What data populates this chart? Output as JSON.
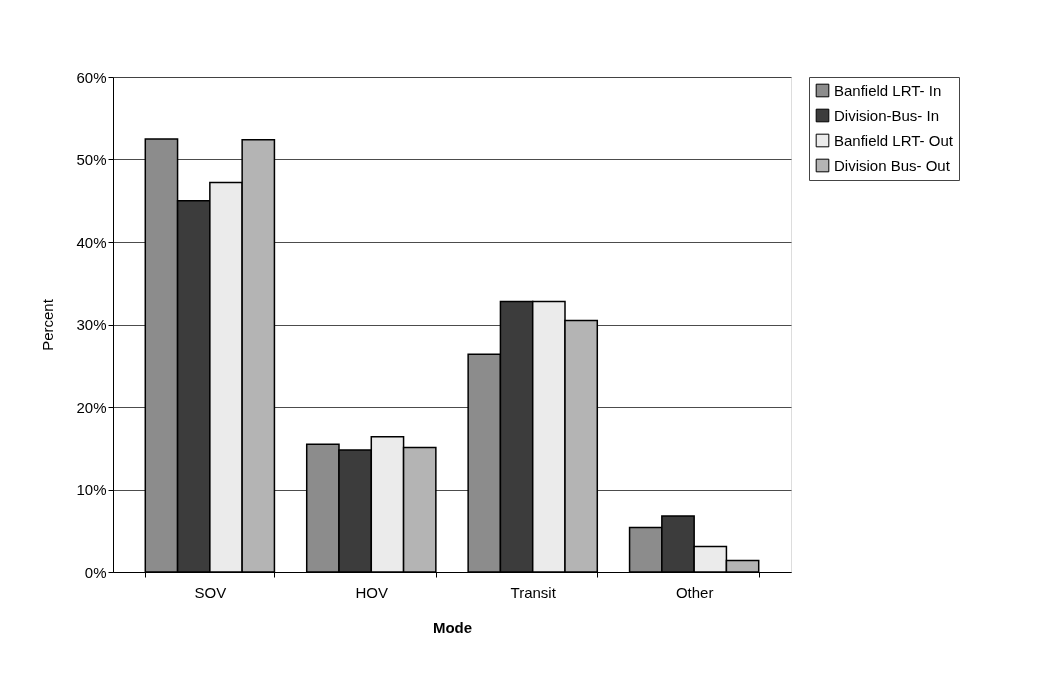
{
  "chart_data": {
    "type": "bar",
    "xlabel": "Mode",
    "ylabel": "Percent",
    "categories": [
      "SOV",
      "HOV",
      "Transit",
      "Other"
    ],
    "series": [
      {
        "name": "Banfield LRT- In",
        "color": "#8c8c8c",
        "values": [
          52.5,
          15.5,
          26.4,
          5.4
        ]
      },
      {
        "name": "Division-Bus- In",
        "color": "#3c3c3c",
        "values": [
          45.0,
          14.8,
          32.8,
          6.8
        ]
      },
      {
        "name": "Banfield LRT- Out",
        "color": "#ebebeb",
        "values": [
          47.2,
          16.4,
          32.8,
          3.1
        ]
      },
      {
        "name": "Division Bus- Out",
        "color": "#b4b4b4",
        "values": [
          52.4,
          15.1,
          30.5,
          1.4
        ]
      }
    ],
    "ylim": [
      0,
      60
    ],
    "yticks": [
      {
        "value": 0,
        "label": "0%"
      },
      {
        "value": 10,
        "label": "10%"
      },
      {
        "value": 20,
        "label": "20%"
      },
      {
        "value": 30,
        "label": "30%"
      },
      {
        "value": 40,
        "label": "40%"
      },
      {
        "value": 50,
        "label": "50%"
      },
      {
        "value": 60,
        "label": "60%"
      }
    ],
    "grid": "y",
    "legend": "right"
  }
}
